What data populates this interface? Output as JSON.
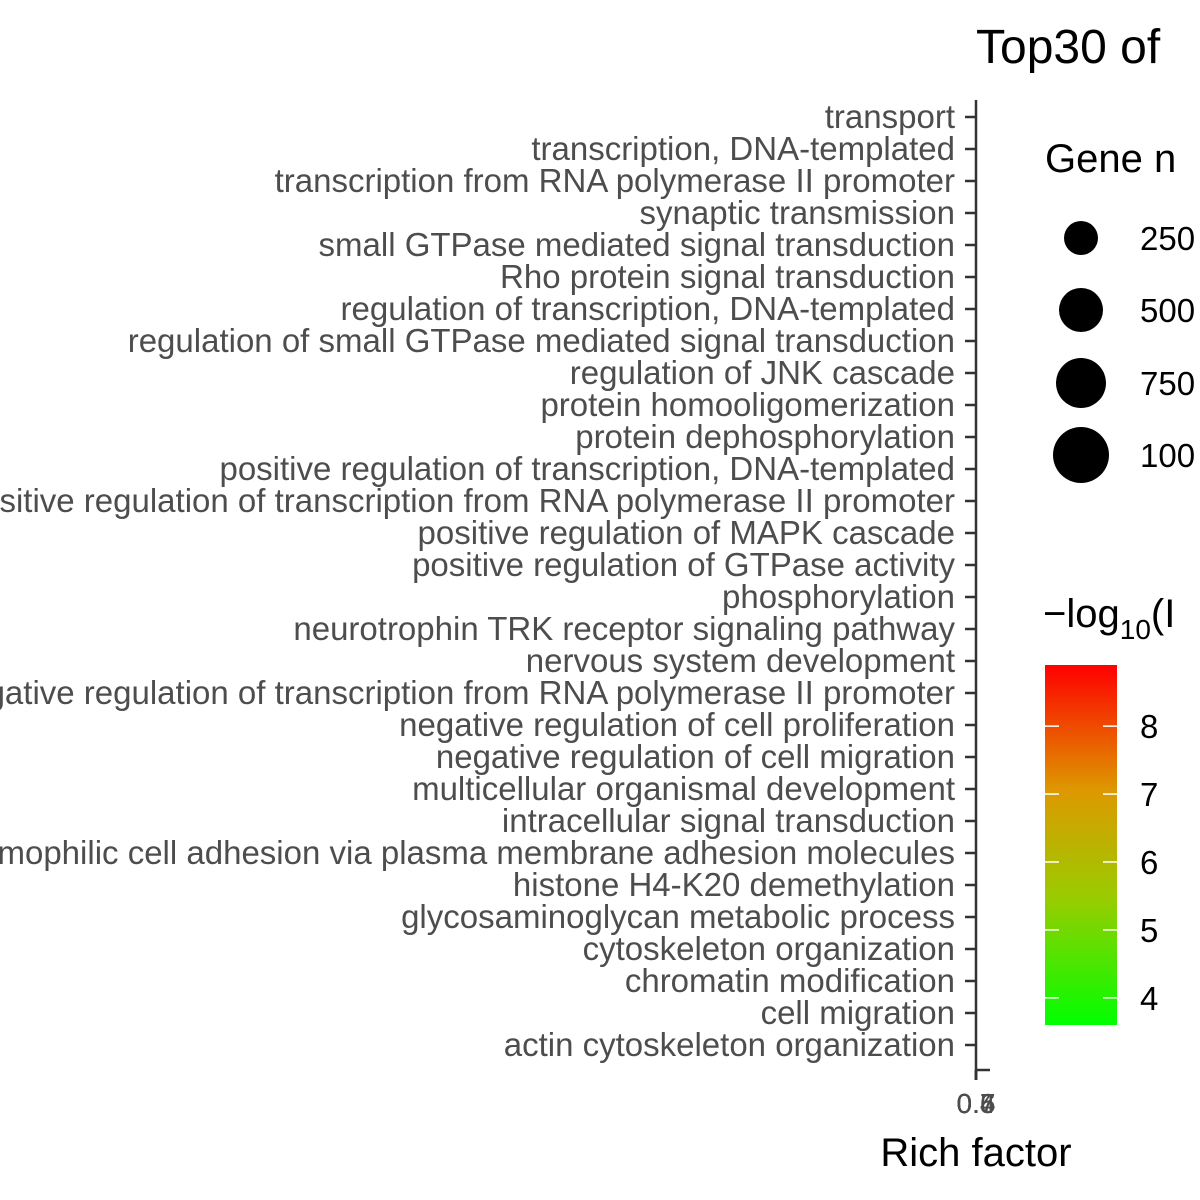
{
  "chart_data": {
    "type": "scatter",
    "title": "Top30 of",
    "xlabel": "Rich factor",
    "x_tick_labels": [
      "0.4",
      "0.5",
      "0.6",
      "0.7"
    ],
    "categories": [
      "transport",
      "transcription, DNA-templated",
      "transcription from RNA polymerase II promoter",
      "synaptic transmission",
      "small GTPase mediated signal transduction",
      "Rho protein signal transduction",
      "regulation of transcription, DNA-templated",
      "regulation of small GTPase mediated signal transduction",
      "regulation of JNK cascade",
      "protein homooligomerization",
      "protein dephosphorylation",
      "positive regulation of transcription, DNA-templated",
      "positive regulation of transcription from RNA polymerase II promoter",
      "positive regulation of MAPK cascade",
      "positive regulation of GTPase activity",
      "phosphorylation",
      "neurotrophin TRK receptor signaling pathway",
      "nervous system development",
      "negative regulation of transcription from RNA polymerase II promoter",
      "negative regulation of cell proliferation",
      "negative regulation of cell migration",
      "multicellular organismal development",
      "intracellular signal transduction",
      "homophilic cell adhesion via plasma membrane adhesion molecules",
      "histone H4-K20 demethylation",
      "glycosaminoglycan metabolic process",
      "cytoskeleton organization",
      "chromatin modification",
      "cell migration",
      "actin cytoskeleton organization"
    ],
    "size_legend": {
      "title": "Gene n",
      "labels": [
        "250",
        "500",
        "750",
        "100"
      ]
    },
    "color_legend": {
      "title_prefix": "−log",
      "title_subscript": "10",
      "title_suffix": "(I",
      "ticks": [
        8,
        7,
        6,
        5,
        4
      ],
      "range": [
        3.6,
        8.9
      ],
      "low_color": "#00ff00",
      "high_color": "#ff0000"
    },
    "grid": false,
    "legend_position": "right"
  }
}
